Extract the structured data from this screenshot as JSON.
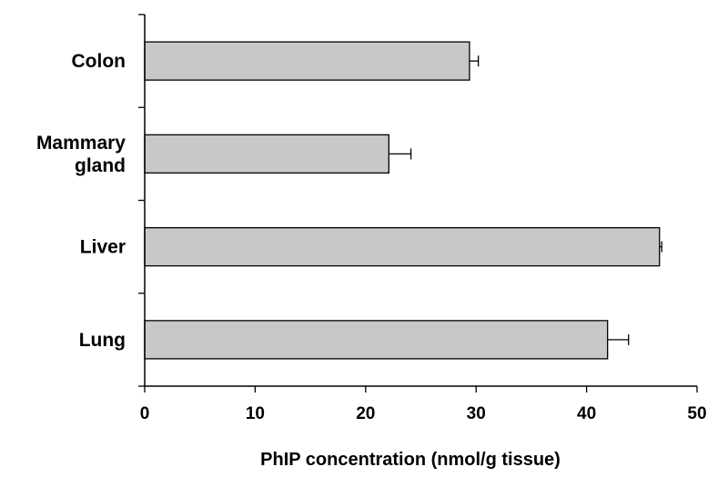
{
  "chart_data": {
    "type": "bar",
    "orientation": "horizontal",
    "categories": [
      "Colon",
      "Mammary gland",
      "Liver",
      "Lung"
    ],
    "category_lines": [
      [
        "Colon"
      ],
      [
        "Mammary",
        "gland"
      ],
      [
        "Liver"
      ],
      [
        "Lung"
      ]
    ],
    "values": [
      29.4,
      22.1,
      46.6,
      41.9
    ],
    "errors": [
      0.8,
      2.0,
      0.2,
      1.9
    ],
    "xlabel": "PhIP concentration (nmol/g tissue)",
    "ylabel": "",
    "title": "",
    "xlim": [
      0,
      50
    ],
    "xticks": [
      0,
      10,
      20,
      30,
      40,
      50
    ],
    "grid": false,
    "bar_color": "#c8c8c8",
    "edge_color": "#000000"
  }
}
